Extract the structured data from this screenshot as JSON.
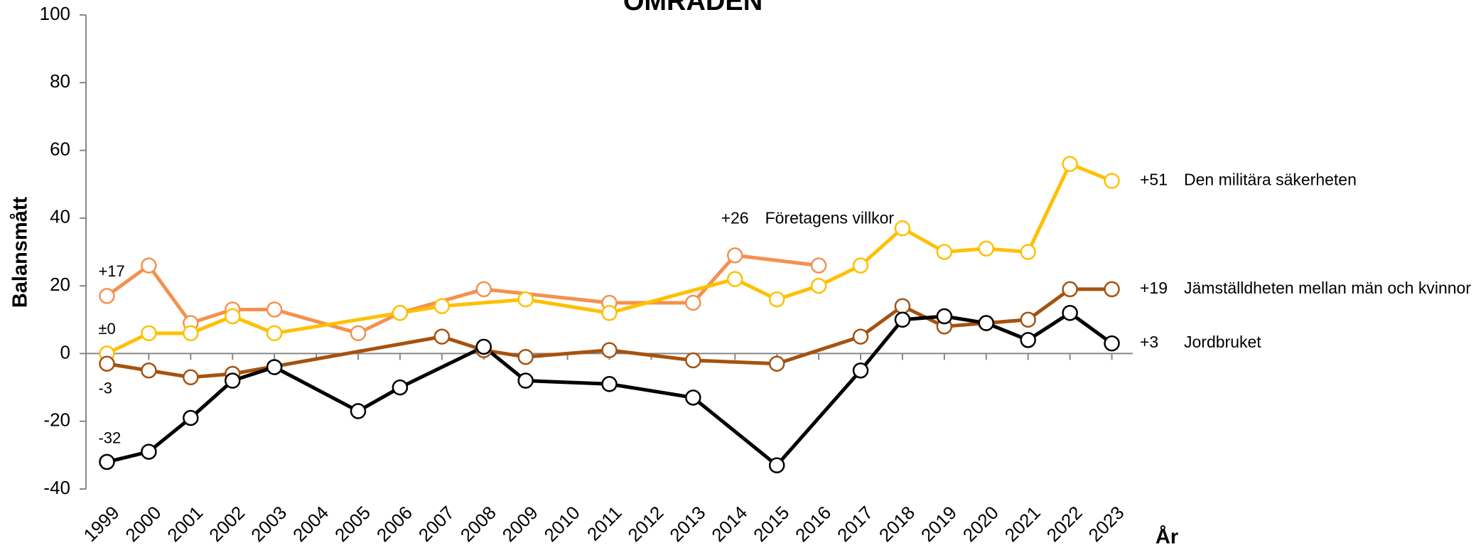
{
  "chart_data": {
    "type": "line",
    "title": "OMRÅDEN",
    "y_label": "Balansmått",
    "x_label": "År",
    "xlim": [
      1998.5,
      2023.5
    ],
    "xticks": [
      1999,
      2000,
      2001,
      2002,
      2003,
      2004,
      2005,
      2006,
      2007,
      2008,
      2009,
      2010,
      2011,
      2012,
      2013,
      2014,
      2015,
      2016,
      2017,
      2018,
      2019,
      2020,
      2021,
      2022,
      2023
    ],
    "ylim": [
      -40,
      100
    ],
    "yticks": [
      -40,
      -20,
      0,
      20,
      40,
      60,
      80,
      100
    ],
    "grid": false,
    "series": [
      {
        "name": "Företagens villkor",
        "color": "#f4914e",
        "start_label": "+17",
        "end_label": "+26",
        "x": [
          1999,
          2000,
          2001,
          2002,
          2003,
          2005,
          2006,
          2008,
          2011,
          2013,
          2014,
          2016
        ],
        "values": [
          17,
          26,
          9,
          13,
          13,
          6,
          12,
          19,
          15,
          15,
          29,
          26
        ]
      },
      {
        "name": "Den militära säkerheten",
        "color": "#ffc000",
        "start_label": "±0",
        "end_label": "+51",
        "x": [
          1999,
          2000,
          2001,
          2002,
          2003,
          2006,
          2007,
          2009,
          2011,
          2014,
          2015,
          2016,
          2017,
          2018,
          2019,
          2020,
          2021,
          2022,
          2023
        ],
        "values": [
          0,
          6,
          6,
          11,
          6,
          12,
          14,
          16,
          12,
          22,
          16,
          20,
          26,
          37,
          30,
          31,
          30,
          56,
          51
        ]
      },
      {
        "name": "Jämställdheten mellan män och kvinnor",
        "color": "#a5520f",
        "start_label": "-3",
        "end_label": "+19",
        "x": [
          1999,
          2000,
          2001,
          2002,
          2007,
          2008,
          2009,
          2011,
          2013,
          2015,
          2017,
          2018,
          2019,
          2020,
          2021,
          2022,
          2023
        ],
        "values": [
          -3,
          -5,
          -7,
          -6,
          5,
          1,
          -1,
          1,
          -2,
          -3,
          5,
          14,
          8,
          9,
          10,
          19,
          19
        ]
      },
      {
        "name": "Jordbruket",
        "color": "#000000",
        "start_label": "-32",
        "end_label": "+3",
        "x": [
          1999,
          2000,
          2001,
          2002,
          2003,
          2005,
          2006,
          2008,
          2009,
          2011,
          2013,
          2015,
          2017,
          2018,
          2019,
          2020,
          2021,
          2022,
          2023
        ],
        "values": [
          -32,
          -29,
          -19,
          -8,
          -4,
          -17,
          -10,
          2,
          -8,
          -9,
          -13,
          -33,
          -5,
          10,
          11,
          9,
          4,
          12,
          3
        ]
      }
    ]
  }
}
